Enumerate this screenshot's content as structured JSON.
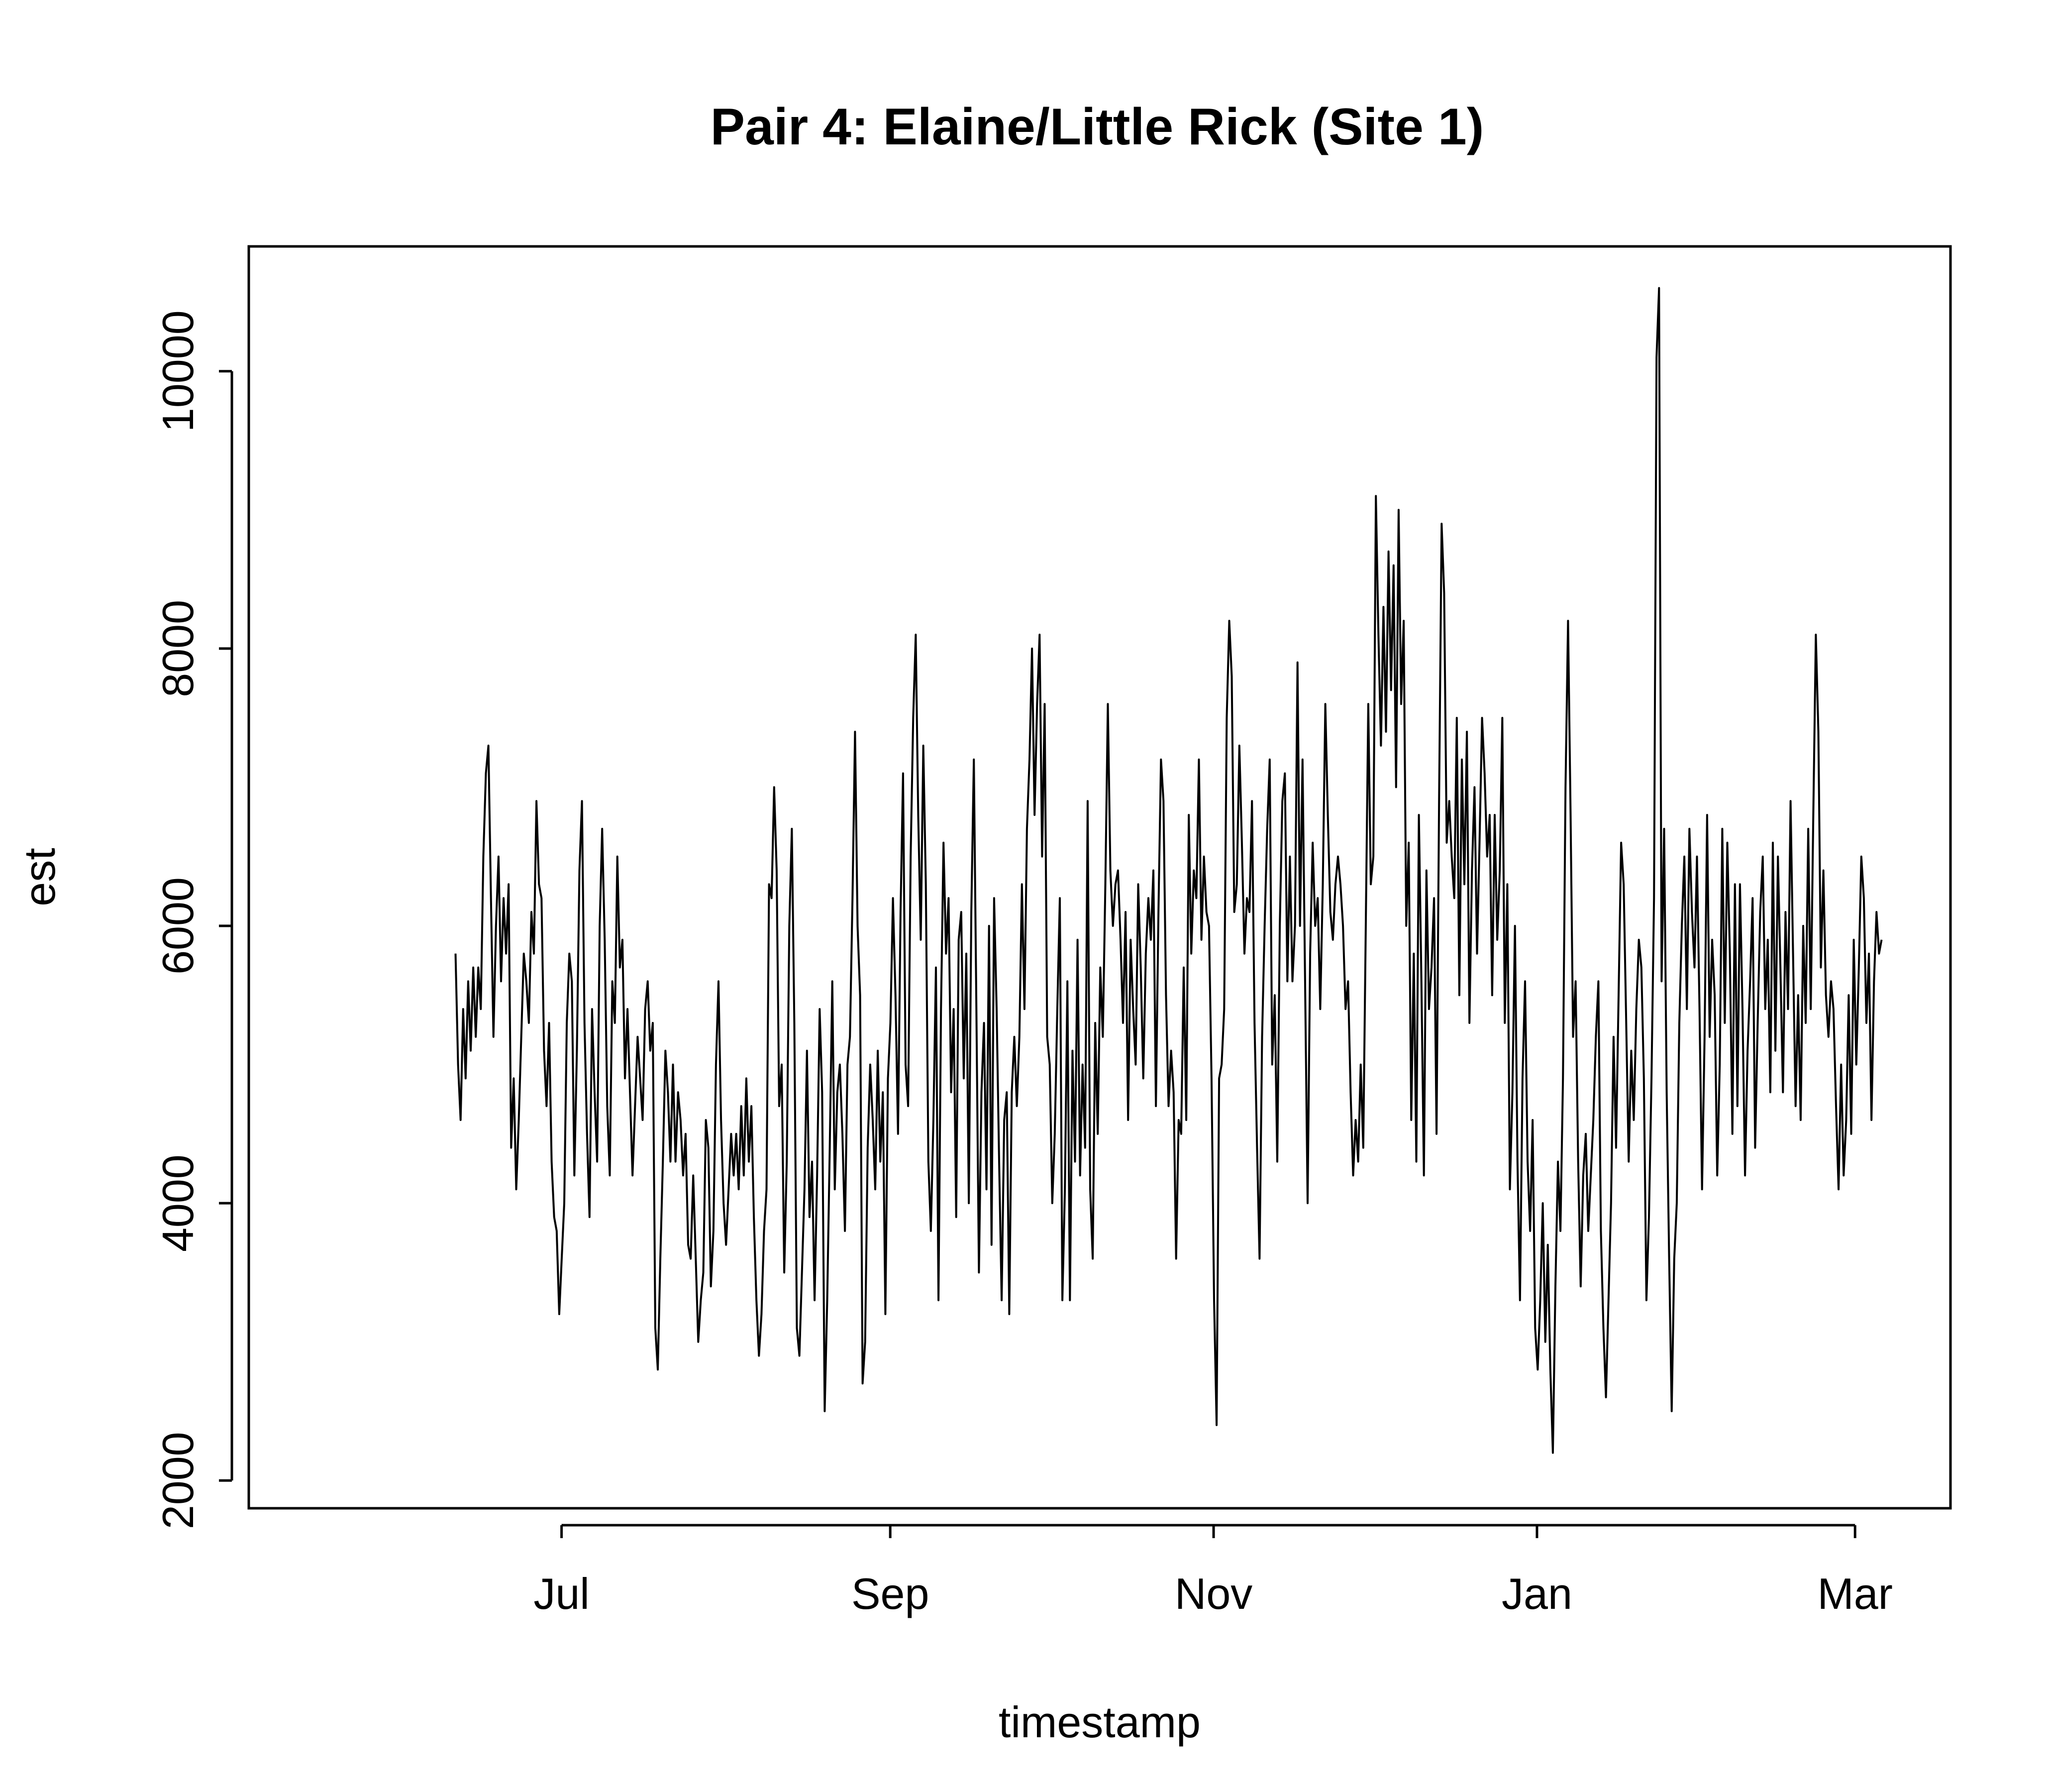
{
  "chart_data": {
    "type": "line",
    "title": "Pair 4: Elaine/Little Rick (Site 1)",
    "xlabel": "timestamp",
    "ylabel": "est",
    "x_ticks": [
      {
        "label": "Jul",
        "date": "2023-07-01"
      },
      {
        "label": "Sep",
        "date": "2023-09-01"
      },
      {
        "label": "Nov",
        "date": "2023-11-01"
      },
      {
        "label": "Jan",
        "date": "2024-01-01"
      },
      {
        "label": "Mar",
        "date": "2024-03-01"
      }
    ],
    "y_ticks": [
      2000,
      4000,
      6000,
      8000,
      10000
    ],
    "xlim": [
      "2023-05-03",
      "2024-03-19"
    ],
    "ylim": [
      1800,
      10900
    ],
    "grid": false,
    "legend": "none",
    "line_color": "#000000",
    "series": [
      {
        "x_start": "2023-06-11",
        "x_end": "2024-03-06",
        "values": [
          5800,
          5000,
          4600,
          5400,
          4900,
          5600,
          5100,
          5700,
          5200,
          5700,
          5400,
          6500,
          7100,
          7300,
          6200,
          5200,
          6000,
          6500,
          5600,
          6200,
          5800,
          6300,
          4400,
          4900,
          4100,
          4600,
          5200,
          5800,
          5600,
          5300,
          6100,
          5800,
          6900,
          6300,
          6200,
          5100,
          4700,
          5300,
          4300,
          3900,
          3800,
          3200,
          3600,
          4000,
          5300,
          5800,
          5600,
          4200,
          5100,
          6400,
          6900,
          5300,
          4500,
          3900,
          5400,
          4800,
          4300,
          6000,
          6700,
          5900,
          4700,
          4200,
          5600,
          5300,
          6500,
          5700,
          5900,
          4900,
          5400,
          4800,
          4200,
          4700,
          5200,
          4900,
          4600,
          5400,
          5600,
          5100,
          5300,
          3100,
          2800,
          3600,
          4300,
          5100,
          4800,
          4300,
          5000,
          4300,
          4800,
          4600,
          4200,
          4500,
          3700,
          3600,
          4200,
          3600,
          3000,
          3300,
          3500,
          4600,
          4400,
          3400,
          3800,
          5000,
          5600,
          4600,
          4000,
          3700,
          4100,
          4500,
          4200,
          4500,
          4100,
          4700,
          4200,
          4900,
          4300,
          4700,
          3900,
          3300,
          2900,
          3200,
          3800,
          4100,
          6300,
          6200,
          7000,
          6400,
          4700,
          5000,
          3500,
          4300,
          6000,
          6700,
          5300,
          3100,
          2900,
          3500,
          4100,
          5100,
          3900,
          4300,
          3300,
          4200,
          5400,
          4800,
          2500,
          3300,
          4400,
          5600,
          4100,
          4800,
          5000,
          4500,
          3800,
          5000,
          5200,
          6200,
          7400,
          6000,
          5500,
          2700,
          3000,
          4400,
          5000,
          4600,
          4100,
          5100,
          4300,
          4800,
          3200,
          4900,
          5300,
          6200,
          5500,
          4500,
          6100,
          7100,
          5000,
          4700,
          6500,
          7500,
          8100,
          6800,
          5900,
          7300,
          6300,
          4300,
          3800,
          4600,
          5700,
          3300,
          5400,
          6600,
          5800,
          6200,
          4800,
          5400,
          3900,
          5900,
          6100,
          4900,
          5800,
          4000,
          6100,
          7200,
          5400,
          3500,
          4800,
          5300,
          4100,
          6000,
          3700,
          6200,
          5400,
          4300,
          3300,
          4600,
          4800,
          3200,
          4800,
          5200,
          4700,
          5200,
          6300,
          5400,
          6700,
          7200,
          8000,
          6800,
          7600,
          8100,
          6500,
          7600,
          5200,
          5000,
          4000,
          4500,
          5400,
          6200,
          3300,
          4100,
          5600,
          3300,
          5100,
          4300,
          5900,
          4200,
          5000,
          4400,
          6900,
          4100,
          3600,
          5300,
          4500,
          5700,
          5200,
          6300,
          7600,
          6400,
          6000,
          6300,
          6400,
          5900,
          5300,
          6100,
          4600,
          5900,
          5400,
          5000,
          6300,
          5700,
          4900,
          5800,
          6200,
          5900,
          6400,
          4700,
          6100,
          7200,
          6900,
          5500,
          4700,
          5100,
          4800,
          3600,
          4600,
          4500,
          5700,
          4600,
          6800,
          5800,
          6400,
          6200,
          7200,
          5900,
          6500,
          6100,
          6000,
          4900,
          3300,
          2400,
          4900,
          5000,
          5400,
          7500,
          8200,
          7800,
          6100,
          6300,
          7300,
          6600,
          5800,
          6200,
          6100,
          6900,
          5300,
          4400,
          3600,
          5200,
          6000,
          6700,
          7200,
          5000,
          5500,
          4300,
          6000,
          6900,
          7100,
          5600,
          6500,
          5600,
          6000,
          7900,
          6000,
          7200,
          5600,
          4000,
          5800,
          6600,
          6000,
          6200,
          5400,
          6300,
          7600,
          6800,
          6100,
          5900,
          6300,
          6500,
          6300,
          6000,
          5400,
          5600,
          4800,
          4200,
          4600,
          4300,
          5000,
          4400,
          6000,
          7600,
          6300,
          6500,
          9100,
          8100,
          7300,
          8300,
          7400,
          8700,
          7700,
          8600,
          7000,
          9000,
          7600,
          8200,
          6000,
          6600,
          4600,
          5800,
          4300,
          6800,
          5600,
          4200,
          6400,
          5400,
          5700,
          6200,
          4500,
          6900,
          8900,
          8400,
          6600,
          6900,
          6500,
          6200,
          7500,
          5500,
          7200,
          6300,
          7400,
          5300,
          6400,
          7000,
          5800,
          6600,
          7500,
          7100,
          6500,
          6800,
          5500,
          6800,
          5900,
          6400,
          7500,
          5300,
          6300,
          4100,
          4800,
          6000,
          4300,
          3300,
          4900,
          5600,
          4300,
          3800,
          4600,
          3100,
          2800,
          3300,
          4000,
          3000,
          3700,
          2800,
          2200,
          3400,
          4300,
          3800,
          4900,
          7000,
          8200,
          6800,
          5200,
          5600,
          4300,
          3400,
          4200,
          4500,
          3800,
          4200,
          4600,
          5200,
          5600,
          3800,
          3100,
          2600,
          3300,
          4000,
          5200,
          4400,
          5500,
          6600,
          6300,
          5300,
          4300,
          5100,
          4600,
          5400,
          5900,
          5700,
          4900,
          3300,
          3900,
          4900,
          6200,
          10100,
          10600,
          5600,
          6700,
          4800,
          3600,
          2500,
          3600,
          4000,
          5300,
          6000,
          6500,
          5400,
          6700,
          6100,
          5700,
          6500,
          5400,
          4100,
          5200,
          6800,
          5200,
          5900,
          5500,
          4200,
          5000,
          6700,
          5300,
          6600,
          5800,
          4500,
          6300,
          4700,
          6300,
          5400,
          4200,
          5100,
          5600,
          6200,
          4400,
          5300,
          6100,
          6500,
          5400,
          5900,
          4800,
          6600,
          5100,
          6500,
          5700,
          4800,
          6100,
          5400,
          6900,
          5800,
          4700,
          5500,
          4600,
          6000,
          5300,
          6700,
          5400,
          6800,
          8100,
          7400,
          5700,
          6400,
          5500,
          5200,
          5600,
          5400,
          4700,
          4100,
          5000,
          4200,
          4600,
          5500,
          4500,
          5900,
          5000,
          5700,
          6500,
          6200,
          5300,
          5800,
          4600,
          5600,
          6100,
          5800,
          5900
        ]
      }
    ]
  }
}
